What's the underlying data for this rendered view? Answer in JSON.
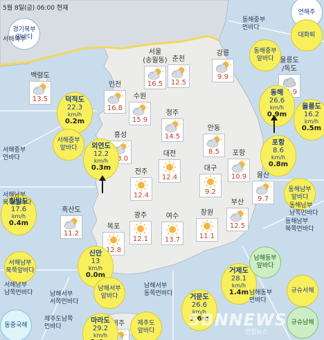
{
  "header": "5월 8일(금) 06:00 현재",
  "colors": {
    "sea": "#c9dcec",
    "land": "#ececea",
    "north": "#d8dde3",
    "zone_yellow": "#f7ef5c",
    "zone_green": "#cdeec4"
  },
  "cities": [
    {
      "name": "백령도",
      "temp": "13.5",
      "icon": "sun-cloud-icon"
    },
    {
      "name": "서울\n(송월동)",
      "temp": "16.5",
      "icon": "sun-cloud-icon"
    },
    {
      "name": "춘천",
      "temp": "12.5",
      "icon": "sun-cloud-icon"
    },
    {
      "name": "강릉",
      "temp": "9.9",
      "icon": "sun-cloud-icon"
    },
    {
      "name": "울릉도\n/독도",
      "temp": "11.9",
      "icon": "cloud-icon"
    },
    {
      "name": "인천",
      "temp": "16.8",
      "icon": "sun-cloud-icon"
    },
    {
      "name": "수원",
      "temp": "15.9",
      "icon": "sun-cloud-icon"
    },
    {
      "name": "청주",
      "temp": "14.5",
      "icon": "sun-cloud-icon"
    },
    {
      "name": "안동",
      "temp": "8.5",
      "icon": "sun-cloud-icon"
    },
    {
      "name": "홍성",
      "temp": "13.0",
      "icon": "sun-cloud-icon"
    },
    {
      "name": "대전",
      "temp": "12.4",
      "icon": "sun-icon"
    },
    {
      "name": "포항",
      "temp": "10.9",
      "icon": "sun-cloud-icon"
    },
    {
      "name": "전주",
      "temp": "12.4",
      "icon": "sun-icon"
    },
    {
      "name": "대구",
      "temp": "9.2",
      "icon": "sun-icon"
    },
    {
      "name": "울산",
      "temp": "9.7",
      "icon": "sun-cloud-icon"
    },
    {
      "name": "흑산도",
      "temp": "11.2",
      "icon": "sun-cloud-icon"
    },
    {
      "name": "광주",
      "temp": "12.1",
      "icon": "sun-icon"
    },
    {
      "name": "여수",
      "temp": "13.7",
      "icon": "sun-icon"
    },
    {
      "name": "창원",
      "temp": "11.1",
      "icon": "sun-icon"
    },
    {
      "name": "부산",
      "temp": "12.5",
      "icon": "sun-cloud-icon"
    },
    {
      "name": "목포",
      "temp": "12.8",
      "icon": "sun-icon"
    },
    {
      "name": "제주",
      "temp": "16.3",
      "icon": "sun-cloud-icon"
    }
  ],
  "waves": [
    {
      "name": "덕적도",
      "speed": "22.3",
      "unit": "km/h",
      "height": "0.2m"
    },
    {
      "name": "외연도",
      "speed": "12.2",
      "unit": "km/h",
      "height": "0.3m"
    },
    {
      "name": "칠발도",
      "speed": "17.6",
      "unit": "km/h",
      "height": "0.4m"
    },
    {
      "name": "신안",
      "speed": "13",
      "unit": "km/h",
      "height": "0.0m"
    },
    {
      "name": "마라도",
      "speed": "29.2",
      "unit": "km/h",
      "height": "1.4m"
    },
    {
      "name": "거문도",
      "speed": "26.6",
      "unit": "km/h",
      "height": "1.6m"
    },
    {
      "name": "거제도",
      "speed": "28.1",
      "unit": "km/h",
      "height": "1.4m"
    },
    {
      "name": "동해",
      "speed": "26.6",
      "unit": "km/h",
      "height": "0.9m"
    },
    {
      "name": "울릉도",
      "speed": "16.2",
      "unit": "km/h",
      "height": "0.5m"
    },
    {
      "name": "포항",
      "speed": "8.6",
      "unit": "km/h",
      "height": "0.8m"
    }
  ],
  "zones": [
    {
      "text": "연해주"
    },
    {
      "text": "대화퇴"
    },
    {
      "text": "동해중부\n앞바다"
    },
    {
      "text": "경기북부\n앞바다"
    },
    {
      "text": "서해중부\n앞바다"
    },
    {
      "text": "동해남부\n앞바다"
    },
    {
      "text": "서해남부\n북쪽앞바다"
    },
    {
      "text": "남해서부\n앞바다"
    },
    {
      "text": "남해동부\n앞바다"
    },
    {
      "text": "규슈서해"
    },
    {
      "text": "규슈남해"
    },
    {
      "text": "동중국해"
    },
    {
      "text": "제주도\n앞바다"
    }
  ],
  "sea_labels": [
    {
      "text": "서해북부"
    },
    {
      "text": "동해중부\n먼바다"
    },
    {
      "text": "서해중부\n먼바다"
    },
    {
      "text": "동해남부\n북쪽먼바다"
    },
    {
      "text": "서해남부\n북쪽먼바다"
    },
    {
      "text": "서해남부\n남쪽먼바다"
    },
    {
      "text": "남해서부\n서쪽먼바다"
    },
    {
      "text": "남해서부\n동쪽먼바다"
    },
    {
      "text": "남해동부\n먼바다"
    },
    {
      "text": "동해남부\n남쪽먼바다"
    },
    {
      "text": "제주도남쪽\n먼바다"
    }
  ],
  "watermark": "SBNNEWS",
  "watermark_sub": "연합뉴스"
}
